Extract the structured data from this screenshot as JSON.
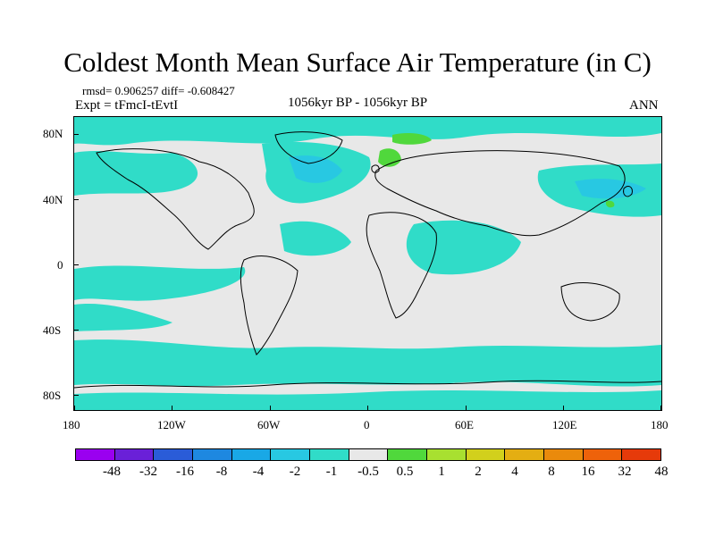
{
  "title": "Coldest Month Mean Surface Air Temperature (in C)",
  "stats": "rmsd= 0.906257 diff= -0.608427",
  "expt": "Expt = tFmcI-tEvtI",
  "period": "1056kyr BP - 1056kyr BP",
  "season": "ANN",
  "y_axis_labels": [
    "80N",
    "40N",
    "0",
    "40S",
    "80S"
  ],
  "x_axis_labels": [
    "180",
    "120W",
    "60W",
    "0",
    "60E",
    "120E",
    "180"
  ],
  "colorbar": {
    "colors": [
      "#9a00f0",
      "#6a20d8",
      "#2a5cd8",
      "#1e88e0",
      "#19a8e6",
      "#28c8e2",
      "#30dcc8",
      "#e8e8e8",
      "#50d83c",
      "#a8e030",
      "#d2d01c",
      "#e4ae12",
      "#ea8a0c",
      "#ee620a",
      "#e63a0a"
    ],
    "labels": [
      "-48",
      "-32",
      "-16",
      "-8",
      "-4",
      "-2",
      "-1",
      "-0.5",
      "0.5",
      "1",
      "2",
      "4",
      "8",
      "16",
      "32",
      "48"
    ]
  },
  "colors": {
    "map_neutral": "#e8e8e8",
    "map_light_negative": "#30dcc8",
    "map_negative": "#28c8e2",
    "map_moderate_negative": "#19a8e6",
    "map_light_positive": "#50d83c",
    "map_positive": "#a8e030",
    "coastline": "#000000"
  }
}
